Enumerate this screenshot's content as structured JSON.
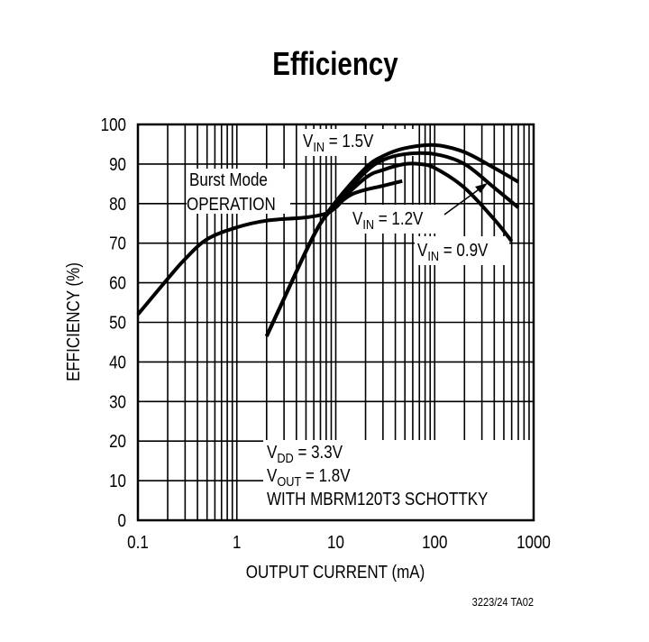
{
  "chart_data": {
    "type": "line",
    "title": "Efficiency",
    "xlabel": "OUTPUT CURRENT (mA)",
    "ylabel": "EFFICIENCY (%)",
    "xscale": "log",
    "xlim": [
      0.1,
      1000
    ],
    "ylim": [
      0,
      100
    ],
    "grid": true,
    "xticks": [
      "0.1",
      "1",
      "10",
      "100",
      "1000"
    ],
    "yticks": [
      "0",
      "10",
      "20",
      "30",
      "40",
      "50",
      "60",
      "70",
      "80",
      "90",
      "100"
    ],
    "series": [
      {
        "name": "Burst Mode OPERATION",
        "x": [
          0.1,
          0.2,
          0.3,
          0.5,
          1,
          2,
          5,
          8,
          10,
          12,
          15,
          20,
          30,
          47
        ],
        "y": [
          52,
          61,
          66,
          71,
          74,
          75.7,
          76.5,
          77.5,
          79,
          81,
          82.5,
          83.5,
          84.5,
          85.7
        ]
      },
      {
        "name": "VIN = 1.5V",
        "x": [
          2,
          3,
          5,
          7,
          10,
          20,
          30,
          50,
          100,
          200,
          400,
          700
        ],
        "y": [
          46.5,
          56,
          68,
          75,
          80.5,
          89,
          92,
          94,
          94.8,
          93,
          89,
          85.5
        ]
      },
      {
        "name": "VIN = 1.2V",
        "x": [
          2,
          3,
          5,
          7,
          10,
          20,
          30,
          50,
          100,
          200,
          400,
          700
        ],
        "y": [
          46.5,
          56,
          68,
          75,
          80,
          88,
          91,
          92.5,
          92.5,
          90,
          84,
          79
        ]
      },
      {
        "name": "VIN = 0.9V",
        "x": [
          2,
          3,
          5,
          7,
          10,
          20,
          30,
          50,
          70,
          100,
          200,
          400,
          600
        ],
        "y": [
          46.5,
          56,
          68,
          75,
          79.5,
          86.5,
          88.5,
          90,
          90,
          89,
          84,
          76,
          70.5
        ]
      }
    ],
    "annotations": {
      "burst_line1": "Burst Mode",
      "burst_line2": "OPERATION",
      "vin15": {
        "v": "V",
        "sub": "IN",
        "rest": " = 1.5V"
      },
      "vin12": {
        "v": "V",
        "sub": "IN",
        "rest": " = 1.2V"
      },
      "vin09": {
        "v": "V",
        "sub": "IN",
        "rest": " = 0.9V"
      },
      "vdd": {
        "v": "V",
        "sub": "DD",
        "rest": " = 3.3V"
      },
      "vout": {
        "v": "V",
        "sub": "OUT",
        "rest": " = 1.8V"
      },
      "schottky": "WITH MBRM120T3 SCHOTTKY"
    },
    "figure_id": "3223/24 TA02"
  }
}
